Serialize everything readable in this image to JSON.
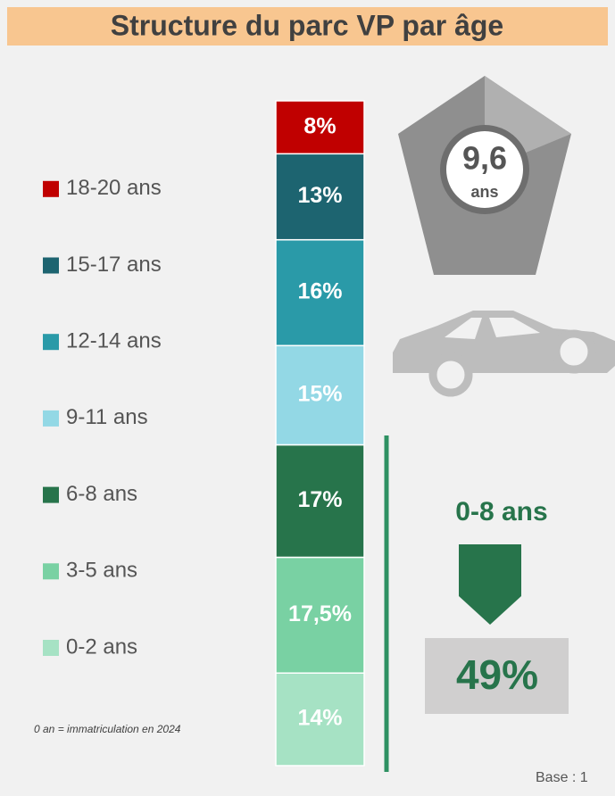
{
  "chart_data": {
    "type": "stacked_column",
    "title": "Structure du parc VP par âge",
    "series": [
      {
        "name": "0-2 ans",
        "color": "#a6e2c4",
        "values": [
          14
        ],
        "value_labels": [
          "14%"
        ]
      },
      {
        "name": "3-5 ans",
        "color": "#79d1a3",
        "values": [
          17.5
        ],
        "value_labels": [
          "17,5%"
        ]
      },
      {
        "name": "6-8 ans",
        "color": "#27744b",
        "values": [
          17
        ],
        "value_labels": [
          "17%"
        ]
      },
      {
        "name": "9-11 ans",
        "color": "#93d8e5",
        "values": [
          15
        ],
        "value_labels": [
          "15%"
        ]
      },
      {
        "name": "12-14 ans",
        "color": "#2a9aa8",
        "values": [
          16
        ],
        "value_labels": [
          "16%"
        ]
      },
      {
        "name": "15-17 ans",
        "color": "#1d6470",
        "values": [
          13
        ],
        "value_labels": [
          "13%"
        ]
      },
      {
        "name": "18-20 ans",
        "color": "#c00000",
        "values": [
          8
        ],
        "value_labels": [
          "8%"
        ]
      }
    ],
    "annotations": {
      "average_age": "9,6",
      "average_age_unit": "ans",
      "note": "0 an = immatriculation en 2024",
      "group_label": "0-8 ans",
      "group_share": "49%",
      "base": "Base : 1"
    }
  }
}
